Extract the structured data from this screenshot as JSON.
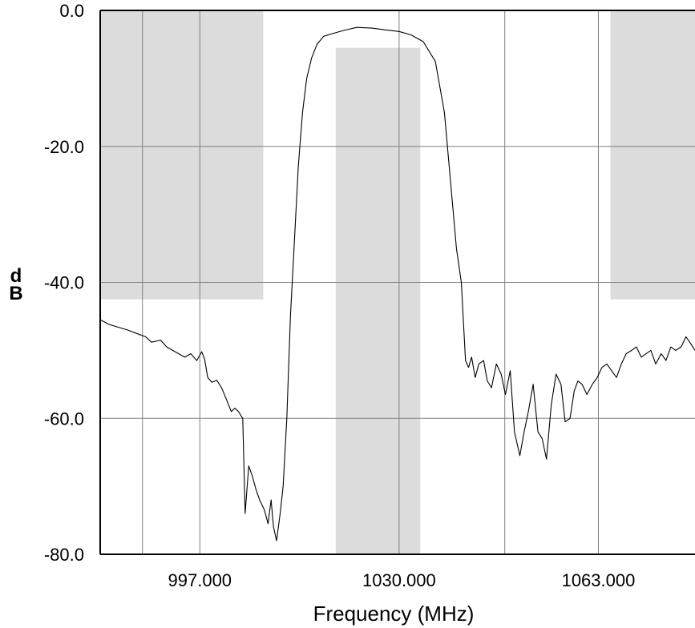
{
  "chart_data": {
    "type": "line",
    "title": "",
    "xlabel": "Frequency (MHz)",
    "ylabel_top": "d",
    "ylabel_bottom": "B",
    "x_tick_labels": [
      "997.000",
      "1030.000",
      "1063.000"
    ],
    "y_tick_labels": [
      "0.0",
      "-20.0",
      "-40.0",
      "-60.0",
      "-80.0"
    ],
    "x_ticks": [
      997,
      1030,
      1063
    ],
    "y_ticks": [
      0,
      -20,
      -40,
      -60,
      -80
    ],
    "xlim": [
      980.5,
      1079
    ],
    "ylim": [
      -80,
      0
    ],
    "grid": true,
    "colors": {
      "line": "#000000",
      "mask": "#dcdcdc",
      "grid": "#808080"
    },
    "masks": [
      {
        "x0": 980.5,
        "x1": 1007.5,
        "y0": 0,
        "y1": -42.5
      },
      {
        "x0": 1019.5,
        "x1": 1033.5,
        "y0": -5.5,
        "y1": -80
      },
      {
        "x0": 1065,
        "x1": 1079,
        "y0": 0,
        "y1": -42.5
      }
    ],
    "series": [
      {
        "x": [
          980.5,
          982,
          983.5,
          985,
          986.5,
          988,
          989,
          990.5,
          991.5,
          992.5,
          993.5,
          994.5,
          995.5,
          996.5,
          997.3,
          997.8,
          998.3,
          999,
          999.8,
          1000.6,
          1001.3,
          1002.2,
          1002.8,
          1003.4,
          1004.1,
          1004.5,
          1005.1,
          1005.7,
          1006.3,
          1006.9,
          1007.7,
          1008.3,
          1008.8,
          1009.2,
          1009.7,
          1010.3,
          1010.8,
          1011.4,
          1012,
          1012.6,
          1013.3,
          1014,
          1014.7,
          1015.5,
          1016.4,
          1017.5,
          1019,
          1021,
          1023,
          1025.5,
          1028,
          1030,
          1032,
          1034,
          1036,
          1037.5,
          1038.5,
          1039.5,
          1040.3,
          1041,
          1041.5,
          1042,
          1042.6,
          1043.2,
          1044,
          1044.6,
          1045.3,
          1046.1,
          1046.9,
          1047.6,
          1048.4,
          1049.1,
          1050,
          1050.7,
          1051.4,
          1052.2,
          1053,
          1053.7,
          1054.4,
          1055.2,
          1056,
          1056.8,
          1057.5,
          1058.3,
          1059,
          1059.6,
          1060.3,
          1061.1,
          1062,
          1062.8,
          1063.6,
          1064.4,
          1065.2,
          1066,
          1066.8,
          1067.6,
          1068.5,
          1069.3,
          1070.1,
          1070.9,
          1071.7,
          1072.5,
          1073.4,
          1074.2,
          1075,
          1075.8,
          1076.7,
          1077.5,
          1078.3,
          1079
        ],
        "y": [
          -45.5,
          -46.2,
          -46.6,
          -47,
          -47.5,
          -48,
          -48.8,
          -48.5,
          -49.5,
          -50,
          -50.5,
          -51,
          -50.5,
          -51.5,
          -50.2,
          -51.3,
          -54,
          -54.7,
          -54.4,
          -55.5,
          -57,
          -59,
          -58.5,
          -59,
          -60,
          -74,
          -67,
          -68.5,
          -70.5,
          -72,
          -73.5,
          -75.5,
          -72,
          -76,
          -78,
          -74,
          -70,
          -60,
          -45,
          -35,
          -23,
          -15,
          -10,
          -7,
          -5,
          -3.8,
          -3.4,
          -2.9,
          -2.5,
          -2.6,
          -2.9,
          -3.1,
          -3.6,
          -4.6,
          -7.5,
          -15,
          -25,
          -35,
          -40,
          -51.5,
          -52.5,
          -51,
          -54,
          -52,
          -51.5,
          -54.5,
          -55.5,
          -52,
          -53.5,
          -56.5,
          -53,
          -62,
          -65.5,
          -62,
          -59,
          -55,
          -62,
          -63,
          -66,
          -58,
          -53.5,
          -55,
          -60.5,
          -60,
          -56,
          -54.5,
          -55,
          -56.5,
          -55,
          -54,
          -52.5,
          -52,
          -53,
          -54,
          -52,
          -50.5,
          -50,
          -49.5,
          -51,
          -50.5,
          -50,
          -52,
          -50.5,
          -51.5,
          -49.5,
          -50,
          -49.5,
          -48,
          -49,
          -50
        ]
      }
    ]
  }
}
